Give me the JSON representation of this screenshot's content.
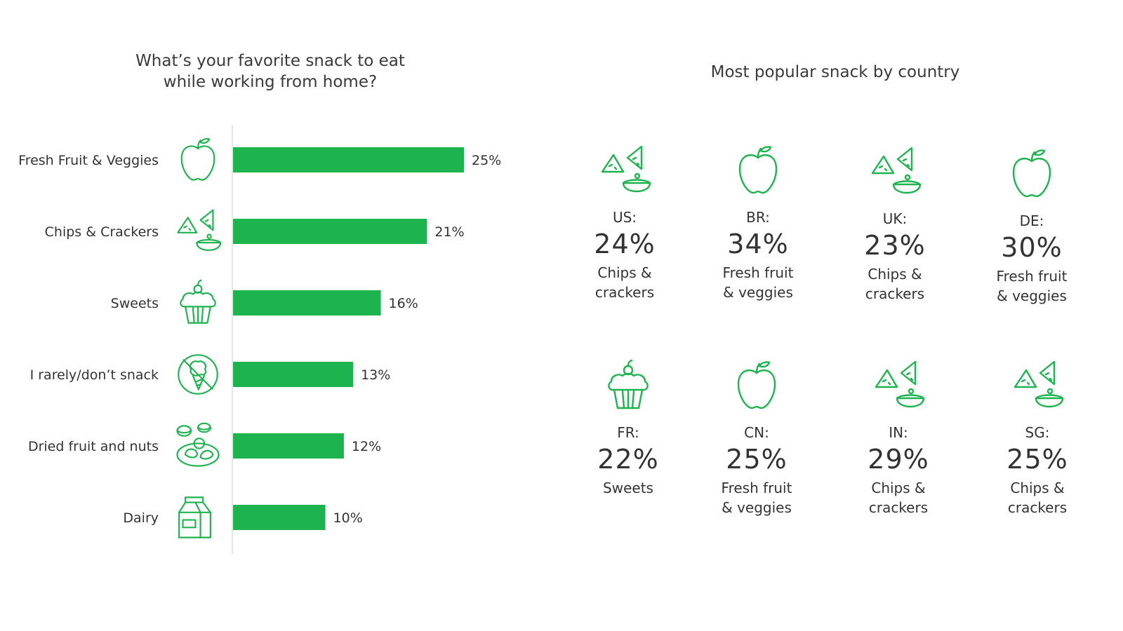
{
  "colors": {
    "accent": "#1db34f",
    "text": "#333333",
    "axis": "#dddddd"
  },
  "left": {
    "title": "What’s your favorite snack to eat while working from home?"
  },
  "right": {
    "title": "Most popular snack by country"
  },
  "chart_data": {
    "type": "bar",
    "orientation": "horizontal",
    "title": "What’s your favorite snack to eat while working from home?",
    "categories": [
      "Fresh Fruit & Veggies",
      "Chips & Crackers",
      "Sweets",
      "I rarely/don’t snack",
      "Dried fruit and nuts",
      "Dairy"
    ],
    "values": [
      25,
      21,
      16,
      13,
      12,
      10
    ],
    "value_labels": [
      "25%",
      "21%",
      "16%",
      "13%",
      "12%",
      "10%"
    ],
    "icons": [
      "apple-icon",
      "chips-icon",
      "cupcake-icon",
      "no-snack-icon",
      "nuts-icon",
      "milk-carton-icon"
    ],
    "xlim": [
      0,
      25
    ],
    "grid": false,
    "legend": "none"
  },
  "countries": [
    {
      "code": "US:",
      "pct": "24%",
      "snack": "Chips &\ncrackers",
      "icon": "chips-icon"
    },
    {
      "code": "BR:",
      "pct": "34%",
      "snack": "Fresh fruit\n& veggies",
      "icon": "apple-icon"
    },
    {
      "code": "UK:",
      "pct": "23%",
      "snack": "Chips &\ncrackers",
      "icon": "chips-icon"
    },
    {
      "code": "DE:",
      "pct": "30%",
      "snack": "Fresh fruit\n& veggies",
      "icon": "apple-icon"
    },
    {
      "code": "FR:",
      "pct": "22%",
      "snack": "Sweets",
      "icon": "cupcake-icon"
    },
    {
      "code": "CN:",
      "pct": "25%",
      "snack": "Fresh fruit\n& veggies",
      "icon": "apple-icon"
    },
    {
      "code": "IN:",
      "pct": "29%",
      "snack": "Chips &\ncrackers",
      "icon": "chips-icon"
    },
    {
      "code": "SG:",
      "pct": "25%",
      "snack": "Chips &\ncrackers",
      "icon": "chips-icon"
    }
  ]
}
